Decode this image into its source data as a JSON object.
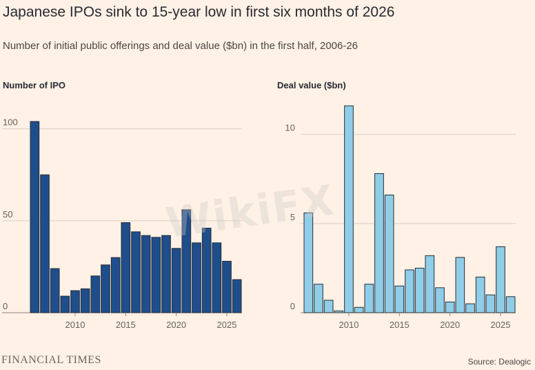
{
  "title": "Japanese IPOs sink to 15-year low in first six months of 2026",
  "subtitle": "Number of initial public offerings and deal value ($bn) in the first half, 2006-26",
  "watermark": "WikiFX",
  "footer": {
    "brand": "FINANCIAL TIMES",
    "source": "Source: Dealogic"
  },
  "colors": {
    "background": "#fff1e5",
    "ipo_bar": "#1f4e8c",
    "deal_bar": "#8fcde8",
    "grid": "#d9cdc2"
  },
  "chart_data": [
    {
      "type": "bar",
      "title": "Number of IPO",
      "x": [
        2006,
        2007,
        2008,
        2009,
        2010,
        2011,
        2012,
        2013,
        2014,
        2015,
        2016,
        2017,
        2018,
        2019,
        2020,
        2021,
        2022,
        2023,
        2024,
        2025,
        2026
      ],
      "values": [
        104,
        75,
        24,
        9,
        12,
        13,
        20,
        26,
        30,
        49,
        44,
        42,
        41,
        42,
        35,
        56,
        38,
        46,
        38,
        28,
        18
      ],
      "ylim": [
        0,
        110
      ],
      "yticks": [
        0,
        50,
        100
      ],
      "xticks": [
        2010,
        2015,
        2020,
        2025
      ],
      "grid": true
    },
    {
      "type": "bar",
      "title": "Deal value ($bn)",
      "x": [
        2006,
        2007,
        2008,
        2009,
        2010,
        2011,
        2012,
        2013,
        2014,
        2015,
        2016,
        2017,
        2018,
        2019,
        2020,
        2021,
        2022,
        2023,
        2024,
        2025,
        2026
      ],
      "values": [
        5.6,
        1.6,
        0.7,
        0.1,
        11.6,
        0.3,
        1.6,
        7.8,
        6.6,
        1.5,
        2.4,
        2.5,
        3.2,
        1.4,
        0.6,
        3.1,
        0.5,
        2.0,
        1.0,
        3.7,
        0.9
      ],
      "ylim": [
        0,
        12
      ],
      "yticks": [
        0,
        5,
        10
      ],
      "xticks": [
        2010,
        2015,
        2020,
        2025
      ],
      "grid": true
    }
  ]
}
